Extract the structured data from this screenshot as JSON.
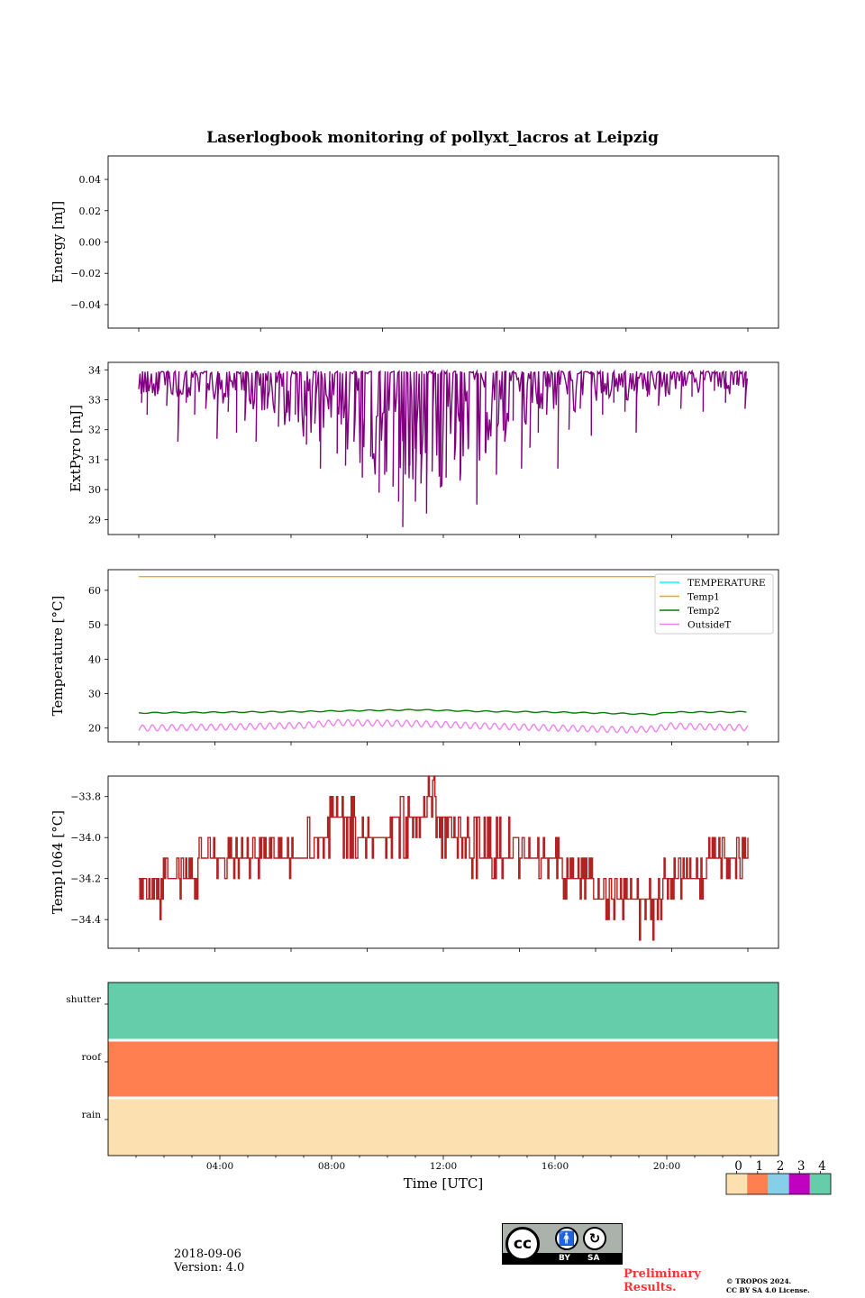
{
  "title": "Laserlogbook monitoring of pollyxt_lacros at Leipzig",
  "date_label": "2018-09-06",
  "version_label": "Version: 4.0",
  "preliminary": [
    "Preliminary",
    "Results."
  ],
  "copyright": [
    "© TROPOS 2024.",
    "CC BY SA 4.0 License."
  ],
  "license_badge": {
    "by": "BY",
    "sa": "SA"
  },
  "colors": {
    "purple": "#800080",
    "orange": "#ffa500",
    "green": "#008000",
    "violet": "#ee82ee",
    "cyan": "#00ffff",
    "firebrick": "#b22222",
    "status0": "#fde0b0",
    "status1": "#ff7f50",
    "status2": "#87ceeb",
    "status3": "#c000c0",
    "status4": "#66cdaa"
  },
  "chart_data": [
    {
      "id": "energy",
      "type": "line",
      "ylabel": "Energy [mJ]",
      "ylim": [
        -0.055,
        0.055
      ],
      "yticks": [
        0.04,
        0.02,
        0.0,
        -0.02,
        -0.04
      ],
      "ytick_labels": [
        "0.04",
        "0.02",
        "0.00",
        "−0.02",
        "−0.04"
      ],
      "series": []
    },
    {
      "id": "extpyro",
      "type": "line",
      "ylabel": "ExtPyro [mJ]",
      "ylim": [
        28.5,
        34.25
      ],
      "yticks": [
        34,
        33,
        32,
        31,
        30,
        29
      ],
      "ytick_labels": [
        "34",
        "33",
        "32",
        "31",
        "30",
        "29"
      ],
      "x_range_hours": [
        1.0,
        22.8
      ],
      "baseline": 33.95,
      "dips": [
        [
          1.1,
          32.9
        ],
        [
          1.3,
          32.5
        ],
        [
          1.7,
          33.3
        ],
        [
          2.0,
          32.8
        ],
        [
          2.4,
          31.6
        ],
        [
          2.7,
          32.9
        ],
        [
          3.0,
          32.5
        ],
        [
          3.4,
          32.7
        ],
        [
          3.8,
          31.7
        ],
        [
          4.2,
          32.6
        ],
        [
          4.5,
          31.9
        ],
        [
          4.8,
          32.3
        ],
        [
          5.2,
          31.6
        ],
        [
          5.6,
          32.7
        ],
        [
          6.0,
          32.1
        ],
        [
          6.3,
          32.8
        ],
        [
          6.6,
          32.5
        ],
        [
          7.0,
          31.5
        ],
        [
          7.3,
          32.2
        ],
        [
          7.5,
          30.7
        ],
        [
          7.8,
          32.9
        ],
        [
          8.1,
          31.2
        ],
        [
          8.4,
          30.8
        ],
        [
          8.7,
          31.6
        ],
        [
          9.0,
          30.4
        ],
        [
          9.3,
          31.1
        ],
        [
          9.6,
          29.9
        ],
        [
          9.8,
          30.5
        ],
        [
          10.1,
          30.1
        ],
        [
          10.3,
          29.6
        ],
        [
          10.45,
          28.75
        ],
        [
          10.7,
          30.8
        ],
        [
          10.9,
          29.6
        ],
        [
          11.1,
          30.2
        ],
        [
          11.3,
          29.2
        ],
        [
          11.5,
          30.6
        ],
        [
          11.8,
          30.1
        ],
        [
          12.0,
          30.4
        ],
        [
          12.3,
          31.0
        ],
        [
          12.5,
          30.3
        ],
        [
          12.8,
          31.4
        ],
        [
          13.1,
          29.5
        ],
        [
          13.4,
          31.3
        ],
        [
          13.8,
          30.5
        ],
        [
          14.1,
          31.6
        ],
        [
          14.4,
          32.3
        ],
        [
          14.7,
          30.7
        ],
        [
          15.0,
          31.4
        ],
        [
          15.3,
          31.9
        ],
        [
          15.6,
          32.5
        ],
        [
          16.0,
          30.7
        ],
        [
          16.4,
          32.0
        ],
        [
          16.8,
          32.7
        ],
        [
          17.2,
          31.8
        ],
        [
          17.6,
          32.5
        ],
        [
          18.0,
          32.9
        ],
        [
          18.4,
          32.6
        ],
        [
          18.8,
          31.9
        ],
        [
          19.2,
          33.1
        ],
        [
          19.6,
          32.8
        ],
        [
          20.0,
          33.3
        ],
        [
          20.4,
          32.7
        ],
        [
          20.8,
          33.1
        ],
        [
          21.2,
          32.6
        ],
        [
          21.6,
          33.3
        ],
        [
          22.0,
          32.9
        ],
        [
          22.4,
          33.5
        ],
        [
          22.7,
          32.7
        ]
      ]
    },
    {
      "id": "temperature",
      "type": "line",
      "ylabel": "Temperature [°C]",
      "ylim": [
        16,
        66
      ],
      "yticks": [
        60,
        50,
        40,
        30,
        20
      ],
      "ytick_labels": [
        "60",
        "50",
        "40",
        "30",
        "20"
      ],
      "x_range_hours": [
        1.0,
        22.8
      ],
      "legend": "top-right",
      "series": [
        {
          "name": "TEMPERATURE",
          "color_key": "cyan",
          "values": []
        },
        {
          "name": "Temp1",
          "color_key": "orange",
          "level": 64.0
        },
        {
          "name": "Temp2",
          "color_key": "green",
          "level_points": [
            [
              1.0,
              24.4
            ],
            [
              4.0,
              24.6
            ],
            [
              7.0,
              24.8
            ],
            [
              9.0,
              25.1
            ],
            [
              11.0,
              25.3
            ],
            [
              13.0,
              24.9
            ],
            [
              16.0,
              24.6
            ],
            [
              18.5,
              24.2
            ],
            [
              19.5,
              24.0
            ],
            [
              20.0,
              24.6
            ],
            [
              22.8,
              24.7
            ]
          ]
        },
        {
          "name": "OutsideT",
          "color_key": "violet",
          "level_points": [
            [
              1.0,
              20.0
            ],
            [
              4.0,
              20.3
            ],
            [
              7.0,
              20.8
            ],
            [
              8.0,
              21.6
            ],
            [
              11.0,
              21.3
            ],
            [
              13.0,
              20.7
            ],
            [
              16.0,
              20.0
            ],
            [
              18.5,
              19.5
            ],
            [
              19.5,
              19.8
            ],
            [
              20.0,
              20.6
            ],
            [
              22.8,
              20.1
            ]
          ],
          "amplitude": 0.9
        }
      ]
    },
    {
      "id": "temp1064",
      "type": "line",
      "ylabel": "Temp1064 [°C]",
      "ylim": [
        -34.54,
        -33.7
      ],
      "yticks": [
        -33.8,
        -34.0,
        -34.2,
        -34.4
      ],
      "ytick_labels": [
        "−33.8",
        "−34.0",
        "−34.2",
        "−34.4"
      ],
      "x_range_hours": [
        1.0,
        22.8
      ],
      "level_points": [
        [
          1.0,
          -34.3
        ],
        [
          2.7,
          -34.25
        ],
        [
          3.5,
          -34.1
        ],
        [
          5.0,
          -34.15
        ],
        [
          6.0,
          -34.1
        ],
        [
          7.0,
          -34.05
        ],
        [
          8.0,
          -33.95
        ],
        [
          9.5,
          -34.0
        ],
        [
          10.5,
          -33.95
        ],
        [
          11.5,
          -33.85
        ],
        [
          12.1,
          -34.0
        ],
        [
          13.5,
          -34.05
        ],
        [
          15.0,
          -34.1
        ],
        [
          16.5,
          -34.2
        ],
        [
          17.5,
          -34.3
        ],
        [
          19.5,
          -34.35
        ],
        [
          20.0,
          -34.2
        ],
        [
          22.6,
          -34.15
        ]
      ],
      "extremes": [
        [
          11.5,
          -33.72
        ],
        [
          18.9,
          -34.5
        ],
        [
          19.4,
          -34.5
        ],
        [
          22.8,
          -34.0
        ]
      ]
    },
    {
      "id": "status",
      "type": "heatmap",
      "categories": [
        "shutter",
        "roof",
        "rain"
      ],
      "category_color_keys": [
        "status4",
        "status1",
        "status0"
      ],
      "xlabel": "Time [UTC]",
      "xlim_hours": [
        0,
        24
      ],
      "xticks": [
        "04:00",
        "08:00",
        "12:00",
        "16:00",
        "20:00"
      ],
      "xtick_hours": [
        4,
        8,
        12,
        16,
        20
      ],
      "colorbar": {
        "ticks": [
          "0",
          "1",
          "2",
          "3",
          "4"
        ],
        "color_keys": [
          "status0",
          "status1",
          "status2",
          "status3",
          "status4"
        ]
      }
    }
  ]
}
